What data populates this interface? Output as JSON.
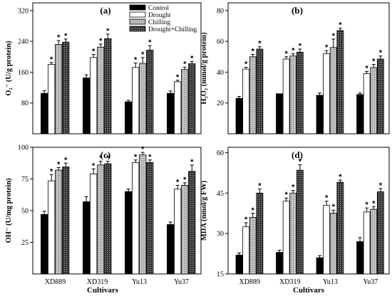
{
  "legend_position": "inside-top-right of panel (a)",
  "colors": {
    "control": "#000000",
    "drought": "#ffffff",
    "chilling": "#b5b5b5",
    "drought_chilling": "#5a5a5a"
  },
  "chart_data": [
    {
      "type": "bar",
      "panel_label": "(a)",
      "ylabel": "O₂⁻ (U/g protein)",
      "xlabel": "",
      "categories": [
        "XD889",
        "XD319",
        "Yu13",
        "Yu37"
      ],
      "ylim": [
        0,
        340
      ],
      "yticks": [
        80,
        160,
        240,
        320
      ],
      "show_xtick_labels": false,
      "series": [
        {
          "name": "Control",
          "values": [
            105,
            145,
            83,
            105
          ],
          "errors": [
            7,
            8,
            4,
            6
          ],
          "sig": [
            false,
            false,
            false,
            false
          ]
        },
        {
          "name": "Drought",
          "values": [
            180,
            198,
            172,
            135
          ],
          "errors": [
            5,
            8,
            12,
            4
          ],
          "sig": [
            true,
            true,
            true,
            true
          ]
        },
        {
          "name": "Chilling",
          "values": [
            232,
            225,
            183,
            167
          ],
          "errors": [
            10,
            8,
            15,
            6
          ],
          "sig": [
            true,
            true,
            true,
            true
          ]
        },
        {
          "name": "Drought+Chilling",
          "values": [
            238,
            247,
            217,
            182
          ],
          "errors": [
            8,
            12,
            12,
            6
          ],
          "sig": [
            true,
            true,
            true,
            true
          ]
        }
      ]
    },
    {
      "type": "bar",
      "panel_label": "(b)",
      "ylabel": "H₂O₂ (mmol/g protein)",
      "xlabel": "",
      "categories": [
        "XD889",
        "XD319",
        "Yu13",
        "Yu37"
      ],
      "ylim": [
        0,
        85
      ],
      "yticks": [
        20,
        40,
        60,
        80
      ],
      "show_xtick_labels": false,
      "series": [
        {
          "name": "Control",
          "values": [
            23,
            26,
            25,
            25.5
          ],
          "errors": [
            1.2,
            0,
            1.5,
            1
          ],
          "sig": [
            false,
            false,
            false,
            false
          ]
        },
        {
          "name": "Drought",
          "values": [
            42,
            48.5,
            52,
            39
          ],
          "errors": [
            1.2,
            1.5,
            2,
            1.5
          ],
          "sig": [
            true,
            true,
            true,
            true
          ]
        },
        {
          "name": "Chilling",
          "values": [
            50,
            50.5,
            56,
            43
          ],
          "errors": [
            1.5,
            1.5,
            5.5,
            2
          ],
          "sig": [
            true,
            true,
            true,
            true
          ]
        },
        {
          "name": "Drought+Chilling",
          "values": [
            55,
            53,
            67,
            48.5
          ],
          "errors": [
            1.5,
            2,
            1.5,
            2
          ],
          "sig": [
            true,
            true,
            true,
            true
          ]
        }
      ]
    },
    {
      "type": "bar",
      "panel_label": "(c)",
      "ylabel": "OH⁻ (U/mg protein)",
      "xlabel": "",
      "categories": [
        "XD889",
        "XD319",
        "Yu13",
        "Yu37"
      ],
      "ylim": [
        0,
        100
      ],
      "yticks": [
        25,
        50,
        75,
        100
      ],
      "show_xtick_labels": true,
      "series": [
        {
          "name": "Control",
          "values": [
            47,
            57,
            65,
            39
          ],
          "errors": [
            2.5,
            4,
            2,
            2
          ],
          "sig": [
            false,
            false,
            false,
            false
          ]
        },
        {
          "name": "Drought",
          "values": [
            73.5,
            79,
            88,
            67
          ],
          "errors": [
            5,
            4,
            2,
            3
          ],
          "sig": [
            true,
            true,
            true,
            true
          ]
        },
        {
          "name": "Chilling",
          "values": [
            82,
            86,
            94,
            70
          ],
          "errors": [
            2,
            3,
            2,
            2
          ],
          "sig": [
            true,
            true,
            true,
            true
          ]
        },
        {
          "name": "Drought+Chilling",
          "values": [
            84.5,
            87,
            88,
            81
          ],
          "errors": [
            3,
            2,
            2,
            5
          ],
          "sig": [
            true,
            true,
            true,
            true
          ]
        }
      ]
    },
    {
      "type": "bar",
      "panel_label": "(d)",
      "ylabel": "MDA (nmol/g FW)",
      "xlabel": "Cultivars",
      "categories": [
        "XD889",
        "XD319",
        "Yu13",
        "Yu37"
      ],
      "ylim": [
        15,
        62
      ],
      "yticks": [
        15,
        30,
        45,
        60
      ],
      "show_xtick_labels": true,
      "series": [
        {
          "name": "Control",
          "values": [
            22,
            23,
            21,
            27
          ],
          "errors": [
            0.8,
            0.8,
            0.8,
            1.5
          ],
          "sig": [
            false,
            false,
            false,
            false
          ]
        },
        {
          "name": "Drought",
          "values": [
            32.5,
            42,
            40.5,
            38
          ],
          "errors": [
            1.5,
            1.2,
            1.5,
            1.5
          ],
          "sig": [
            true,
            true,
            true,
            true
          ]
        },
        {
          "name": "Chilling",
          "values": [
            36,
            45,
            37.5,
            39
          ],
          "errors": [
            1.5,
            1,
            1.2,
            1
          ],
          "sig": [
            true,
            true,
            true,
            true
          ]
        },
        {
          "name": "Drought+Chilling",
          "values": [
            45,
            53.5,
            49,
            45.5
          ],
          "errors": [
            1.5,
            2,
            0.8,
            1.2
          ],
          "sig": [
            true,
            true,
            true,
            true
          ]
        }
      ]
    }
  ],
  "shared_xlabel_left": "Cultivars"
}
